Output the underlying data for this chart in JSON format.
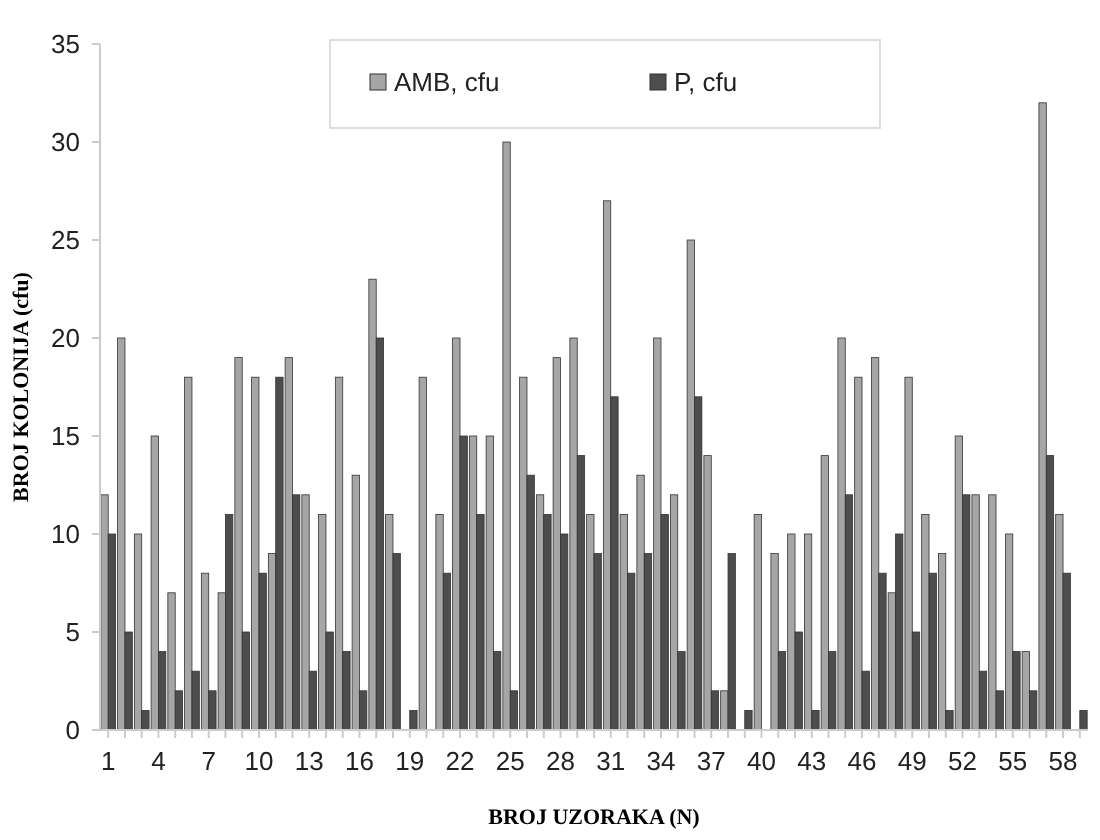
{
  "chart_data": {
    "type": "bar",
    "xlabel": "BROJ UZORAKA (N)",
    "ylabel": "BROJ KOLONIJA (cfu)",
    "categories": [
      "1",
      null,
      null,
      "4",
      null,
      null,
      "7",
      null,
      null,
      "10",
      null,
      null,
      "13",
      null,
      null,
      "16",
      null,
      null,
      "19",
      null,
      null,
      "22",
      null,
      null,
      "25",
      null,
      null,
      "28",
      null,
      null,
      "31",
      null,
      null,
      "34",
      null,
      null,
      "37",
      null,
      null,
      "40",
      null,
      null,
      "43",
      null,
      null,
      "46",
      null,
      null,
      "49",
      null,
      null,
      "52",
      null,
      null,
      "55",
      null,
      null,
      "58",
      null
    ],
    "series": [
      {
        "name": "AMB, cfu",
        "color": "#a6a6a6",
        "values": [
          12,
          20,
          10,
          15,
          7,
          18,
          8,
          7,
          19,
          18,
          9,
          19,
          12,
          11,
          18,
          13,
          23,
          11,
          0,
          18,
          11,
          20,
          15,
          15,
          30,
          18,
          12,
          19,
          20,
          11,
          27,
          11,
          13,
          20,
          12,
          25,
          14,
          2,
          0,
          11,
          9,
          10,
          10,
          14,
          20,
          18,
          19,
          7,
          18,
          11,
          9,
          15,
          12,
          12,
          10,
          4,
          32,
          11,
          0
        ]
      },
      {
        "name": "P, cfu",
        "color": "#4d4d4d",
        "values": [
          10,
          5,
          1,
          4,
          2,
          3,
          2,
          11,
          5,
          8,
          18,
          12,
          3,
          5,
          4,
          2,
          20,
          9,
          1,
          0,
          8,
          15,
          11,
          4,
          2,
          13,
          11,
          10,
          14,
          9,
          17,
          8,
          9,
          11,
          4,
          17,
          2,
          9,
          1,
          0,
          4,
          5,
          1,
          4,
          12,
          3,
          8,
          10,
          5,
          8,
          1,
          12,
          3,
          2,
          4,
          2,
          14,
          8,
          1
        ]
      }
    ],
    "ylim": [
      0,
      35
    ],
    "yticks": [
      0,
      5,
      10,
      15,
      20,
      25,
      30,
      35
    ],
    "grid": false,
    "legend": "top"
  }
}
